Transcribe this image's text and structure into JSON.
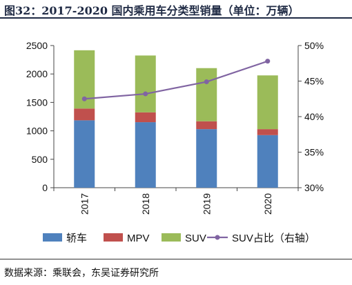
{
  "title": "图32：2017-2020 国内乘用车分类型销量（单位：万辆）",
  "source": "数据来源：乘联会，东吴证券研究所",
  "chart_data": {
    "type": "bar",
    "stacked": true,
    "title": "图32：2017-2020 国内乘用车分类型销量（单位：万辆）",
    "unit": "万辆",
    "categories": [
      "2017",
      "2018",
      "2019",
      "2020"
    ],
    "series": [
      {
        "name": "轿车",
        "type": "bar",
        "axis": "left",
        "color": "#4f81bd",
        "values": [
          1185,
          1152,
          1030,
          925
        ]
      },
      {
        "name": "MPV",
        "type": "bar",
        "axis": "left",
        "color": "#c0504d",
        "values": [
          207,
          173,
          138,
          105
        ]
      },
      {
        "name": "SUV",
        "type": "bar",
        "axis": "left",
        "color": "#9bbb59",
        "values": [
          1025,
          1000,
          935,
          945
        ]
      },
      {
        "name": "SUV占比（右轴）",
        "type": "line",
        "axis": "right",
        "color": "#8064a2",
        "values": [
          42.5,
          43.2,
          44.9,
          47.8
        ]
      }
    ],
    "y_left": {
      "min": 0,
      "max": 2500,
      "ticks": [
        "0",
        "500",
        "1000",
        "1500",
        "2000",
        "2500"
      ]
    },
    "y_right": {
      "min": 30,
      "max": 50,
      "ticks": [
        "30%",
        "35%",
        "40%",
        "45%",
        "50%"
      ]
    },
    "legend_position": "bottom",
    "grid": false
  }
}
